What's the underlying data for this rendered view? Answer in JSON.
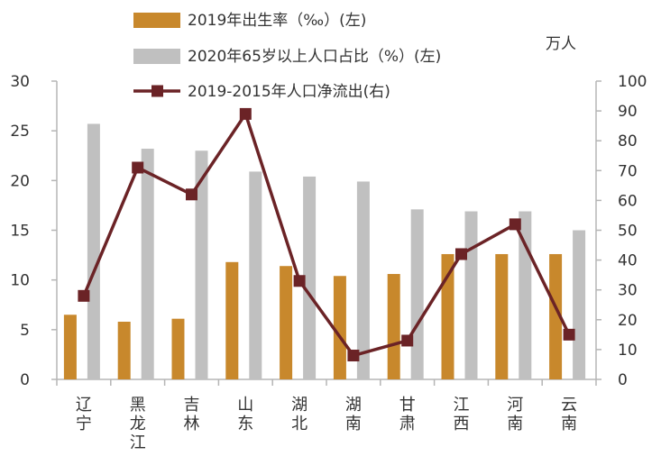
{
  "chart_data": {
    "type": "bar",
    "categories": [
      "辽宁",
      "黑龙江",
      "吉林",
      "山东",
      "湖北",
      "湖南",
      "甘肃",
      "江西",
      "河南",
      "云南"
    ],
    "series": [
      {
        "name": "2019年出生率（‰）(左)",
        "type": "bar",
        "axis": "left",
        "color": "#c8882c",
        "values": [
          6.5,
          5.8,
          6.1,
          11.8,
          11.4,
          10.4,
          10.6,
          12.6,
          12.6,
          12.6
        ]
      },
      {
        "name": "2020年65岁以上人口占比（%）(左)",
        "type": "bar",
        "axis": "left",
        "color": "#c0c0c0",
        "values": [
          25.7,
          23.2,
          23.0,
          20.9,
          20.4,
          19.9,
          17.1,
          16.9,
          16.9,
          15.0
        ]
      },
      {
        "name": "2019-2015年人口净流出(右)",
        "type": "line",
        "axis": "right",
        "color": "#6b2326",
        "values": [
          28,
          71,
          62,
          89,
          33,
          8,
          13,
          42,
          52,
          15
        ]
      }
    ],
    "y_left": {
      "min": 0,
      "max": 30,
      "step": 5,
      "ticks": [
        "0",
        "5",
        "10",
        "15",
        "20",
        "25",
        "30"
      ]
    },
    "y_right": {
      "min": 0,
      "max": 100,
      "step": 10,
      "unit": "万人",
      "ticks": [
        "0",
        "10",
        "20",
        "30",
        "40",
        "50",
        "60",
        "70",
        "80",
        "90",
        "100"
      ]
    },
    "grid": false,
    "legend_position": "top-center"
  }
}
